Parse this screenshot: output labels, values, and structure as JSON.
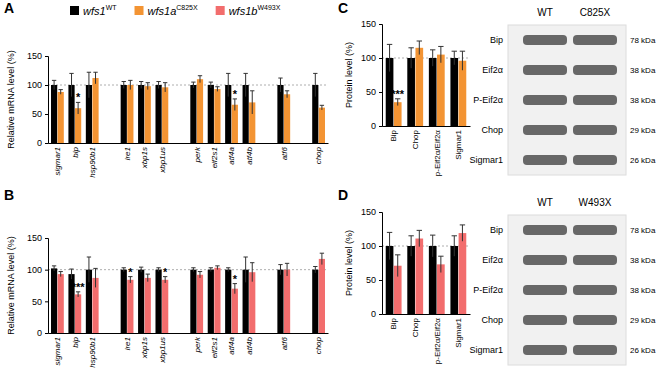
{
  "chart_data": [
    {
      "type": "bar",
      "title": "A",
      "y_label": "Relative mRNA level (%)",
      "categories": [
        "sigmar1",
        "bip",
        "hsp90b1",
        null,
        "ire1",
        "xbp1s",
        "xbp1us",
        null,
        "perk",
        "eif2s1",
        "atf4a",
        "atf4b",
        null,
        "atf6",
        null,
        "chop"
      ],
      "series": [
        {
          "name": "wfs1WT",
          "color": "#000000",
          "values": [
            100,
            100,
            100,
            null,
            100,
            100,
            100,
            null,
            100,
            100,
            100,
            100,
            null,
            100,
            null,
            100
          ],
          "errors": [
            8,
            20,
            22,
            null,
            6,
            6,
            6,
            null,
            5,
            5,
            20,
            20,
            null,
            12,
            null,
            20
          ]
        },
        {
          "name": "wfs1aC825X",
          "color": "#f39433",
          "values": [
            88,
            60,
            112,
            null,
            100,
            98,
            96,
            null,
            110,
            93,
            66,
            70,
            null,
            84,
            null,
            61
          ],
          "errors": [
            4,
            10,
            10,
            null,
            8,
            6,
            8,
            null,
            6,
            4,
            10,
            20,
            null,
            6,
            null,
            4
          ]
        }
      ],
      "ylim": [
        0,
        150
      ],
      "yticks": [
        0,
        50,
        100,
        150
      ],
      "reference_line": 100,
      "annotations": [
        {
          "category": "bip",
          "series": 1,
          "text": "*"
        },
        {
          "category": "atf4a",
          "series": 1,
          "text": "*"
        }
      ]
    },
    {
      "type": "bar",
      "title": "B",
      "y_label": "Relative mRNA level (%)",
      "categories": [
        "sigmar1",
        "bip",
        "hsp90b1",
        null,
        "ire1",
        "xbp1s",
        "xbp1us",
        null,
        "perk",
        "eif2s1",
        "atf4a",
        "atf4b",
        null,
        "atf6",
        null,
        "chop"
      ],
      "series": [
        {
          "name": "wfs1WT",
          "color": "#000000",
          "values": [
            102,
            93,
            100,
            null,
            100,
            100,
            100,
            null,
            100,
            100,
            100,
            100,
            null,
            100,
            null,
            100
          ],
          "errors": [
            4,
            8,
            20,
            null,
            3,
            4,
            3,
            null,
            3,
            3,
            3,
            20,
            null,
            8,
            null,
            5
          ]
        },
        {
          "name": "wfs1bW493X",
          "color": "#f26d6d",
          "values": [
            93,
            61,
            87,
            null,
            84,
            87,
            84,
            null,
            92,
            103,
            70,
            96,
            null,
            100,
            null,
            117
          ],
          "errors": [
            4,
            4,
            15,
            null,
            5,
            6,
            5,
            null,
            5,
            3,
            8,
            15,
            null,
            10,
            null,
            9
          ]
        }
      ],
      "ylim": [
        0,
        150
      ],
      "yticks": [
        0,
        50,
        100,
        150
      ],
      "reference_line": 100,
      "annotations": [
        {
          "category": "bip",
          "series": 1,
          "text": "***"
        },
        {
          "category": "ire1",
          "series": 1,
          "text": "*"
        },
        {
          "category": "xbp1us",
          "series": 1,
          "text": "*"
        },
        {
          "category": "atf4a",
          "series": 1,
          "text": "*"
        }
      ]
    },
    {
      "type": "bar",
      "title": "C",
      "y_label": "Protein level (%)",
      "categories": [
        "Bip",
        "Chop",
        "p-Eif2α/Eif2α",
        "Sigmar1"
      ],
      "series": [
        {
          "name": "wfs1WT",
          "color": "#000000",
          "values": [
            100,
            100,
            100,
            100
          ],
          "errors": [
            20,
            15,
            12,
            10
          ]
        },
        {
          "name": "wfs1aC825X",
          "color": "#f39433",
          "values": [
            35,
            115,
            105,
            96
          ],
          "errors": [
            5,
            10,
            12,
            14
          ]
        }
      ],
      "ylim": [
        0,
        150
      ],
      "yticks": [
        0,
        50,
        100,
        150
      ],
      "reference_line": 100,
      "annotations": [
        {
          "category": "Bip",
          "series": 1,
          "text": "***"
        }
      ]
    },
    {
      "type": "bar",
      "title": "D",
      "y_label": "Protein level (%)",
      "categories": [
        "Bip",
        "Chop",
        "p-Eif2α/Eif2α",
        "Sigmar1"
      ],
      "series": [
        {
          "name": "wfs1WT",
          "color": "#000000",
          "values": [
            100,
            100,
            100,
            100
          ],
          "errors": [
            20,
            15,
            16,
            15
          ]
        },
        {
          "name": "wfs1bW493X",
          "color": "#f26d6d",
          "values": [
            71,
            111,
            73,
            119
          ],
          "errors": [
            16,
            12,
            12,
            12
          ]
        }
      ],
      "ylim": [
        0,
        150
      ],
      "yticks": [
        0,
        50,
        100,
        150
      ],
      "reference_line": 100
    }
  ],
  "blots": [
    {
      "lanes": [
        "WT",
        "C825X"
      ],
      "rows": [
        {
          "label": "Bip",
          "size": "78 kDa"
        },
        {
          "label": "Eif2α",
          "size": "38 kDa"
        },
        {
          "label": "P-Eif2α",
          "size": "38 kDa"
        },
        {
          "label": "Chop",
          "size": "29 kDa"
        },
        {
          "label": "Sigmar1",
          "size": "26 kDa"
        }
      ]
    },
    {
      "lanes": [
        "WT",
        "W493X"
      ],
      "rows": [
        {
          "label": "Bip",
          "size": "78 kDa"
        },
        {
          "label": "Eif2α",
          "size": "38 kDa"
        },
        {
          "label": "P-Eif2α",
          "size": "38 kDa"
        },
        {
          "label": "Chop",
          "size": "29 kDa"
        },
        {
          "label": "Sigmar1",
          "size": "26 kDa"
        }
      ]
    }
  ]
}
